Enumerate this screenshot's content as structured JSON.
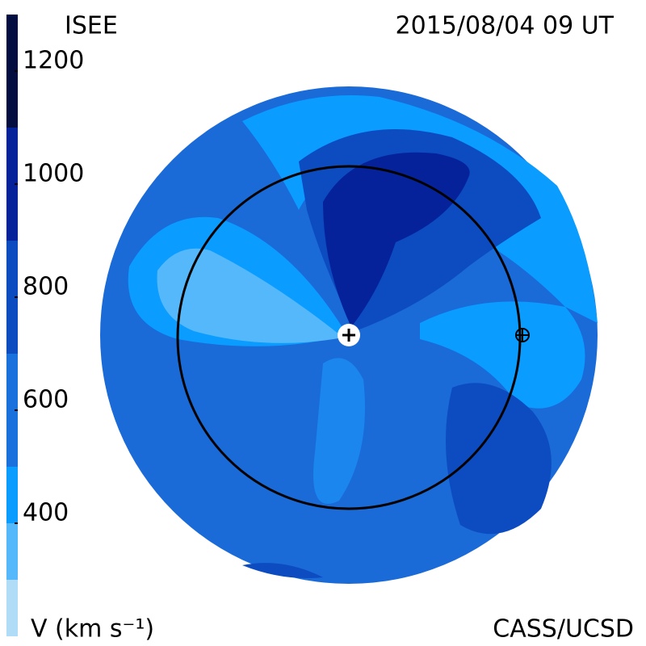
{
  "chart_data": {
    "type": "colormap",
    "title": "ISEE",
    "subtitle": "2015/08/04 09 UT",
    "credit": "CASS/UCSD",
    "colorbar_label": "V (km s⁻¹)",
    "clim": [
      200,
      1300
    ],
    "cticks": [
      400,
      600,
      800,
      1000,
      1200
    ],
    "bands": [
      {
        "range": [
          200,
          300
        ],
        "color": "#b0dcf8"
      },
      {
        "range": [
          300,
          400
        ],
        "color": "#55b8fa"
      },
      {
        "range": [
          400,
          500
        ],
        "color": "#0a9cff"
      },
      {
        "range": [
          500,
          700
        ],
        "color": "#1a70dc"
      },
      {
        "range": [
          700,
          900
        ],
        "color": "#0c4cc0"
      },
      {
        "range": [
          900,
          1100
        ],
        "color": "#06229a"
      },
      {
        "range": [
          1100,
          1300
        ],
        "color": "#030d40"
      }
    ]
  }
}
